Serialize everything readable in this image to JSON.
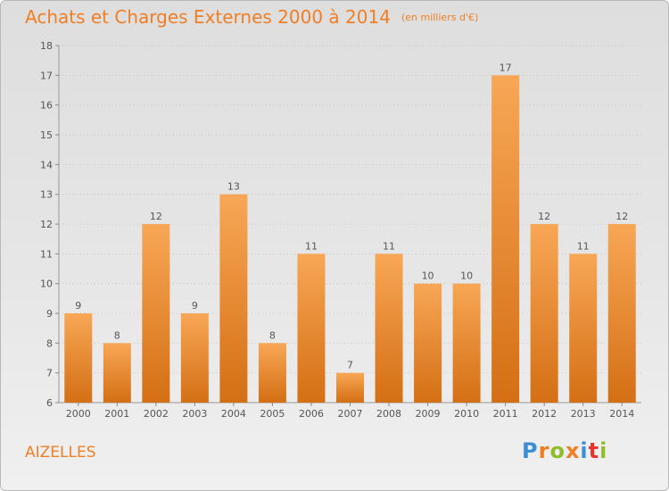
{
  "title": "Achats et Charges Externes 2000 à 2014",
  "unit": "(en milliers d'€)",
  "commune": "AIZELLES",
  "logo": {
    "letters": [
      "P",
      "r",
      "o",
      "x",
      "i",
      "t",
      "i"
    ],
    "colors": [
      "#3b8fd4",
      "#f07e24",
      "#8fbd2c",
      "#f07e24",
      "#3b8fd4",
      "#e3342f",
      "#8fbd2c"
    ]
  },
  "chart_data": {
    "type": "bar",
    "categories": [
      "2000",
      "2001",
      "2002",
      "2003",
      "2004",
      "2005",
      "2006",
      "2007",
      "2008",
      "2009",
      "2010",
      "2011",
      "2012",
      "2013",
      "2014"
    ],
    "values": [
      9,
      8,
      12,
      9,
      13,
      8,
      11,
      7,
      11,
      10,
      10,
      17,
      12,
      11,
      12
    ],
    "ylim": [
      6,
      18
    ],
    "yticks": [
      6,
      7,
      8,
      9,
      10,
      11,
      12,
      13,
      14,
      15,
      16,
      17,
      18
    ],
    "grid": "y-dotted",
    "bar_color": "#f07e24"
  }
}
